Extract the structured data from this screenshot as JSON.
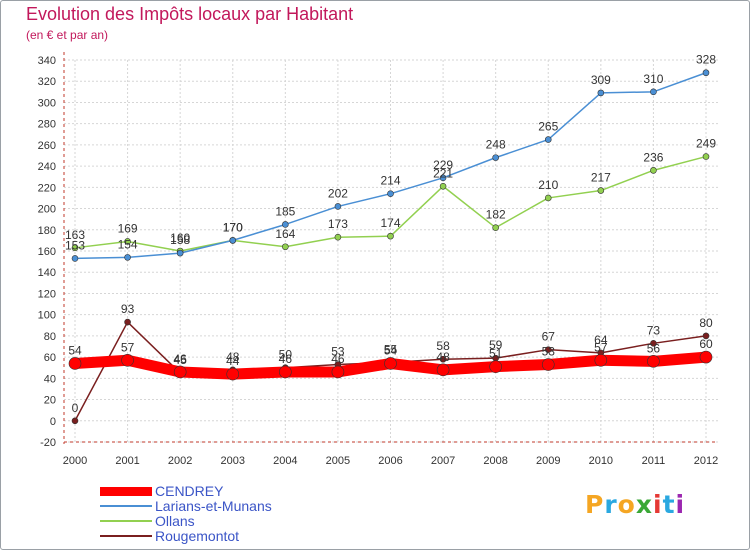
{
  "chart_data": {
    "type": "line",
    "title": "Evolution des Impôts locaux par Habitant",
    "subtitle": "(en € et par an)",
    "x": [
      "2000",
      "2001",
      "2002",
      "2003",
      "2004",
      "2005",
      "2006",
      "2007",
      "2008",
      "2009",
      "2010",
      "2011",
      "2012"
    ],
    "ylim": [
      -20,
      340
    ],
    "yticks": [
      -20,
      0,
      20,
      40,
      60,
      80,
      100,
      120,
      140,
      160,
      180,
      200,
      220,
      240,
      260,
      280,
      300,
      320,
      340
    ],
    "grid": true,
    "legend_position": "bottom-left",
    "series": [
      {
        "name": "CENDREY",
        "color": "#ff0000",
        "values": [
          54,
          57,
          46,
          44,
          46,
          46,
          54,
          48,
          51,
          53,
          57,
          56,
          60
        ]
      },
      {
        "name": "Larians-et-Munans",
        "color": "#4a8fd4",
        "values": [
          153,
          154,
          158,
          170,
          185,
          202,
          214,
          229,
          248,
          265,
          309,
          310,
          328
        ]
      },
      {
        "name": "Ollans",
        "color": "#92d050",
        "values": [
          163,
          169,
          160,
          170,
          164,
          173,
          174,
          221,
          182,
          210,
          217,
          236,
          249
        ]
      },
      {
        "name": "Rougemontot",
        "color": "#7a1f1f",
        "values": [
          0,
          93,
          45,
          48,
          50,
          53,
          55,
          58,
          59,
          67,
          64,
          73,
          80
        ]
      }
    ]
  },
  "logo": {
    "letters": [
      "P",
      "r",
      "o",
      "x",
      "i",
      "t",
      "i"
    ],
    "colors": [
      "#f5a623",
      "#2aa8e0",
      "#f5a623",
      "#3aa836",
      "#e53935",
      "#2aa8e0",
      "#9c27b0"
    ]
  }
}
